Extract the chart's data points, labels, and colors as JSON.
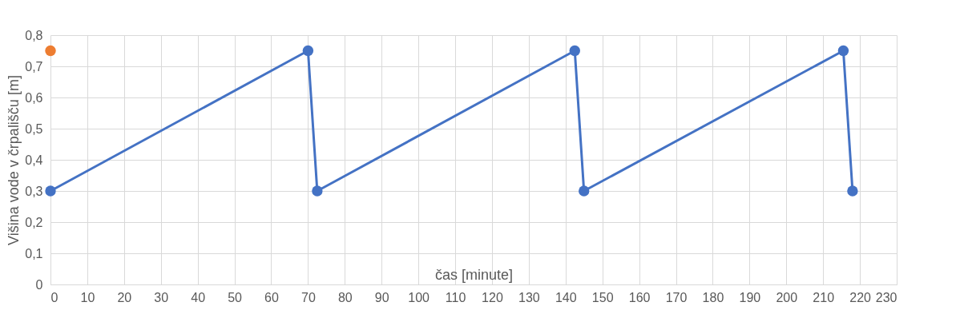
{
  "chart_data": {
    "type": "line",
    "xlabel": "čas [minute]",
    "ylabel": "Višina vode v črpališču [m]",
    "series": [
      {
        "color": "#4472c4",
        "x": [
          0,
          70,
          72.5,
          142.5,
          145,
          215.5,
          218
        ],
        "values": [
          0.3,
          0.75,
          0.3,
          0.75,
          0.3,
          0.75,
          0.3
        ]
      },
      {
        "type": "scatter",
        "color": "#ed7d31",
        "x": [
          0
        ],
        "values": [
          0.75
        ]
      }
    ],
    "xlim": [
      0,
      230
    ],
    "xticks": [
      0,
      10,
      20,
      30,
      40,
      50,
      60,
      70,
      80,
      90,
      100,
      110,
      120,
      130,
      140,
      150,
      160,
      170,
      180,
      190,
      200,
      210,
      220,
      230
    ],
    "ylim": [
      0,
      0.8
    ],
    "yticks": [
      0,
      {
        "value": 0.1,
        "label": "0,1"
      },
      {
        "value": 0.2,
        "label": "0,2"
      },
      {
        "value": 0.3,
        "label": "0,3"
      },
      {
        "value": 0.4,
        "label": "0,4"
      },
      {
        "value": 0.5,
        "label": "0,5"
      },
      {
        "value": 0.6,
        "label": "0,6"
      },
      {
        "value": 0.7,
        "label": "0,7"
      },
      {
        "value": 0.8,
        "label": "0,8"
      }
    ],
    "grid": true,
    "marker": "circle",
    "line_style": "solid"
  }
}
